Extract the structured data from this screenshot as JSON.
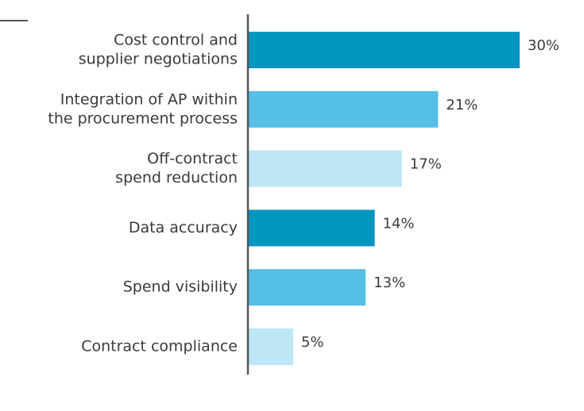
{
  "chart_data": {
    "type": "bar",
    "orientation": "horizontal",
    "title": "",
    "xlabel": "",
    "ylabel": "",
    "xlim": [
      0,
      30
    ],
    "grid": false,
    "categories": [
      [
        "Cost control and",
        "supplier negotiations"
      ],
      [
        "Integration of AP within",
        "the procurement process"
      ],
      [
        "Off-contract",
        "spend reduction"
      ],
      [
        "Data accuracy"
      ],
      [
        "Spend visibility"
      ],
      [
        "Contract compliance"
      ]
    ],
    "values": [
      30,
      21,
      17,
      14,
      13,
      5
    ],
    "value_labels": [
      "30%",
      "21%",
      "17%",
      "14%",
      "13%",
      "5%"
    ],
    "colors": [
      "#0096c0",
      "#55bfe8",
      "#bde6f7",
      "#0096c0",
      "#55bfe8",
      "#bde6f7"
    ],
    "axis_color": "#555555"
  }
}
